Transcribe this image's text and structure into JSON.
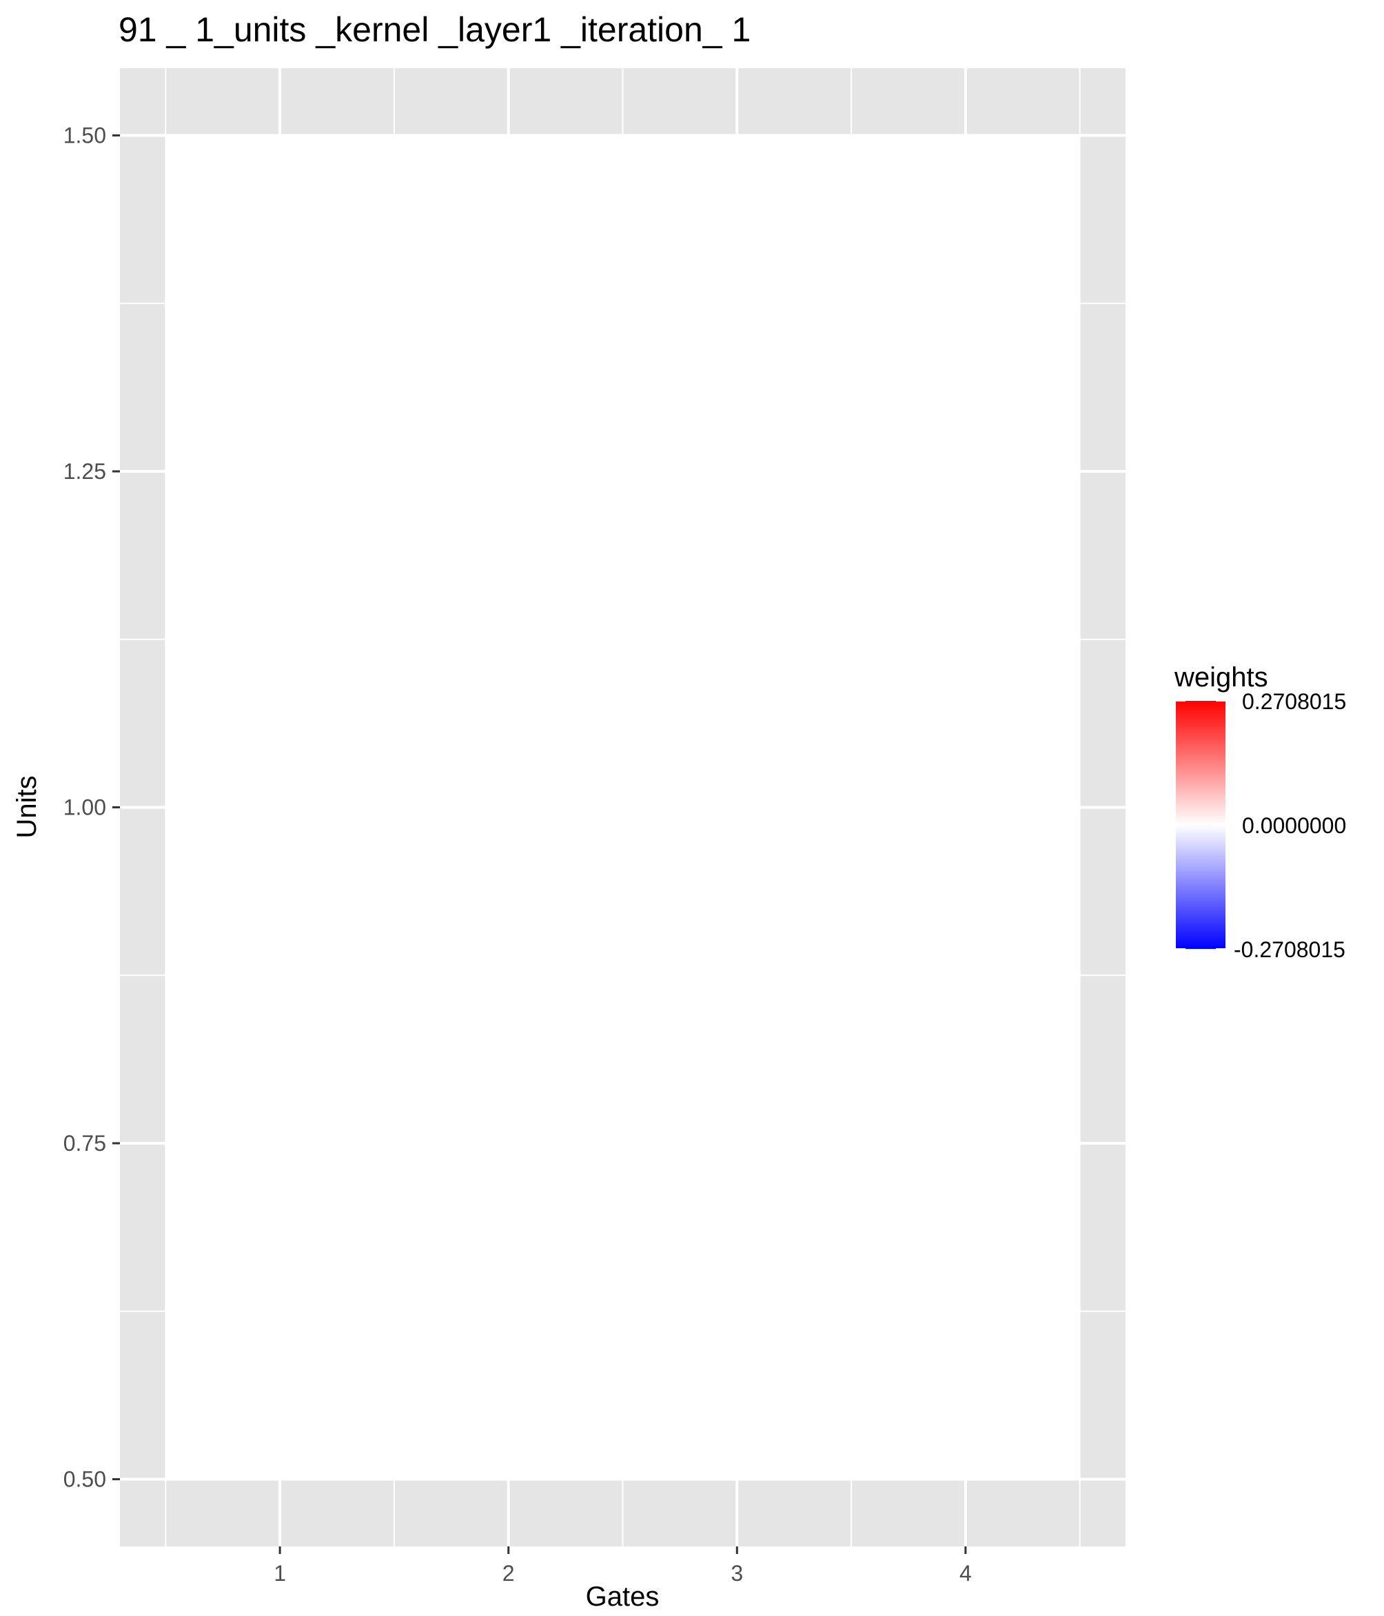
{
  "chart_data": {
    "type": "heatmap",
    "title": "91 _ 1_units _kernel _layer1 _iteration_ 1",
    "xlabel": "Gates",
    "ylabel": "Units",
    "x_ticks": [
      1,
      2,
      3,
      4
    ],
    "y_ticks": [
      "0.50",
      "0.75",
      "1.00",
      "1.25",
      "1.50"
    ],
    "xlim": [
      0.3,
      4.7
    ],
    "ylim": [
      0.45,
      1.55
    ],
    "cells": [
      {
        "x": 1,
        "y": 1,
        "value": 0.0
      },
      {
        "x": 2,
        "y": 1,
        "value": 0.0
      },
      {
        "x": 3,
        "y": 1,
        "value": 0.0
      },
      {
        "x": 4,
        "y": 1,
        "value": 0.0
      }
    ],
    "legend": {
      "title": "weights",
      "labels": [
        "0.2708015",
        "0.0000000",
        "-0.2708015"
      ],
      "max": 0.2708015,
      "mid": 0.0,
      "min": -0.2708015,
      "high_color": "#ff0000",
      "mid_color": "#ffffff",
      "low_color": "#0000ff",
      "placement": "right"
    },
    "panel_background": "#e5e5e5",
    "grid": true
  }
}
